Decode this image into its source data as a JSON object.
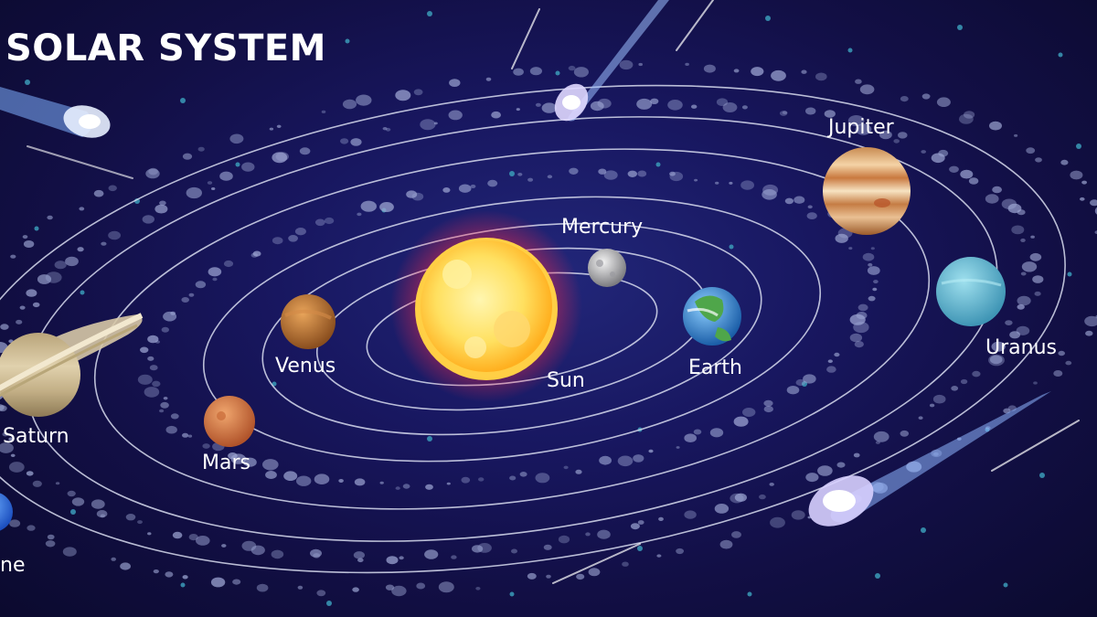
{
  "title": "SOLAR SYSTEM",
  "bodies": {
    "sun": "Sun",
    "mercury": "Mercury",
    "venus": "Venus",
    "earth": "Earth",
    "mars": "Mars",
    "jupiter": "Jupiter",
    "saturn": "Saturn",
    "uranus": "Uranus",
    "neptune_partial": "ne"
  },
  "colors": {
    "space_background": "#151455",
    "orbit_line": "#d8dcef",
    "asteroid": "#9ca5d2",
    "sun_core": "#ffe46a",
    "sun_glow": "#ff3a30"
  }
}
